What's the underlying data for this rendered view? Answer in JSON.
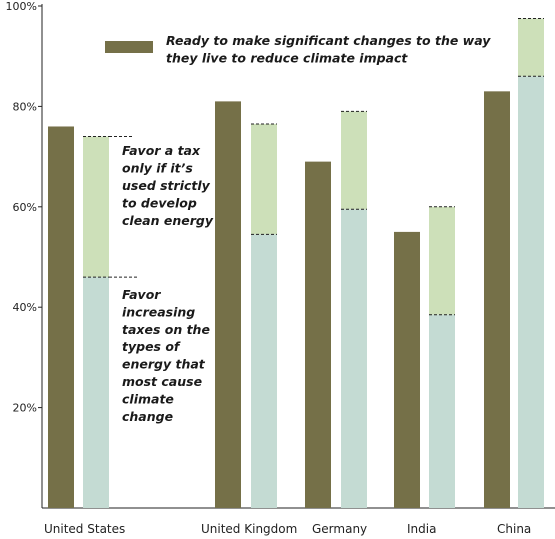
{
  "chart_data": {
    "type": "bar",
    "categories": [
      "United States",
      "United Kingdom",
      "Germany",
      "India",
      "China"
    ],
    "yticks": [
      "20%",
      "40%",
      "60%",
      "80%",
      "100%"
    ],
    "ylim": [
      0,
      100
    ],
    "grid": false,
    "legend_position": "top",
    "series": [
      {
        "name": "Ready to make significant changes to the way they live to reduce climate impact",
        "color": "#757048",
        "values": [
          76,
          81,
          69,
          55,
          83
        ]
      },
      {
        "name": "Favor increasing taxes on the types of energy that most cause climate change",
        "color": "#c4dbd3",
        "values": [
          46,
          54.5,
          59.5,
          38.5,
          86
        ]
      },
      {
        "name": "Favor a tax only if it's used strictly to develop clean energy",
        "color": "#cde0b9",
        "values": [
          74,
          76.5,
          79,
          60,
          97.5
        ]
      }
    ],
    "legend_text": [
      "Ready to make significant changes to the way",
      "they live to reduce climate impact"
    ],
    "annotation_tax_only": [
      "Favor a tax",
      "only if it’s",
      "used strictly",
      "to develop",
      "clean energy"
    ],
    "annotation_increase": [
      "Favor",
      "increasing",
      "taxes on the",
      "types of",
      "energy that",
      "most cause",
      "climate",
      "change"
    ]
  }
}
